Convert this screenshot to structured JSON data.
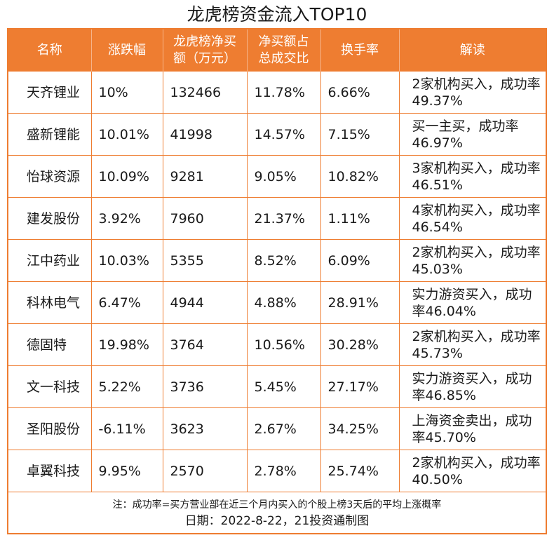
{
  "title": "龙虎榜资金流入TOP10",
  "table": {
    "headers": [
      "名称",
      "涨跌幅",
      "龙虎榜净买额（万元）",
      "净买额占总成交比",
      "换手率",
      "解读"
    ],
    "rows": [
      [
        "天齐锂业",
        "10%",
        "132466",
        "11.78%",
        "6.66%",
        "2家机构买入，成功率49.37%"
      ],
      [
        "盛新锂能",
        "10.01%",
        "41998",
        "14.57%",
        "7.15%",
        "买一主买，成功率46.97%"
      ],
      [
        "怡球资源",
        "10.09%",
        "9281",
        "9.05%",
        "10.82%",
        "3家机构买入，成功率46.51%"
      ],
      [
        "建发股份",
        "3.92%",
        "7960",
        "21.37%",
        "1.11%",
        "4家机构买入，成功率46.54%"
      ],
      [
        "江中药业",
        "10.03%",
        "5355",
        "8.52%",
        "6.09%",
        "2家机构买入，成功率45.03%"
      ],
      [
        "科林电气",
        "6.47%",
        "4944",
        "4.88%",
        "28.91%",
        "实力游资买入，成功率46.04%"
      ],
      [
        "德固特",
        "19.98%",
        "3764",
        "10.56%",
        "30.28%",
        "2家机构买入，成功率45.73%"
      ],
      [
        "文一科技",
        "5.22%",
        "3736",
        "5.45%",
        "27.17%",
        "实力游资买入，成功率46.85%"
      ],
      [
        "圣阳股份",
        "-6.11%",
        "3623",
        "2.67%",
        "34.25%",
        "上海资金卖出，成功率45.70%"
      ],
      [
        "卓翼科技",
        "9.95%",
        "2570",
        "2.78%",
        "25.74%",
        "2家机构买入，成功率40.50%"
      ]
    ]
  },
  "footer": {
    "note": "注：成功率=买方营业部在近三个月内买入的个股上榜3天后的平均上涨概率",
    "date": "日期：2022-8-22，21投资通制图"
  },
  "colors": {
    "accent": "#ee7d31",
    "header_text": "#ffffff"
  }
}
